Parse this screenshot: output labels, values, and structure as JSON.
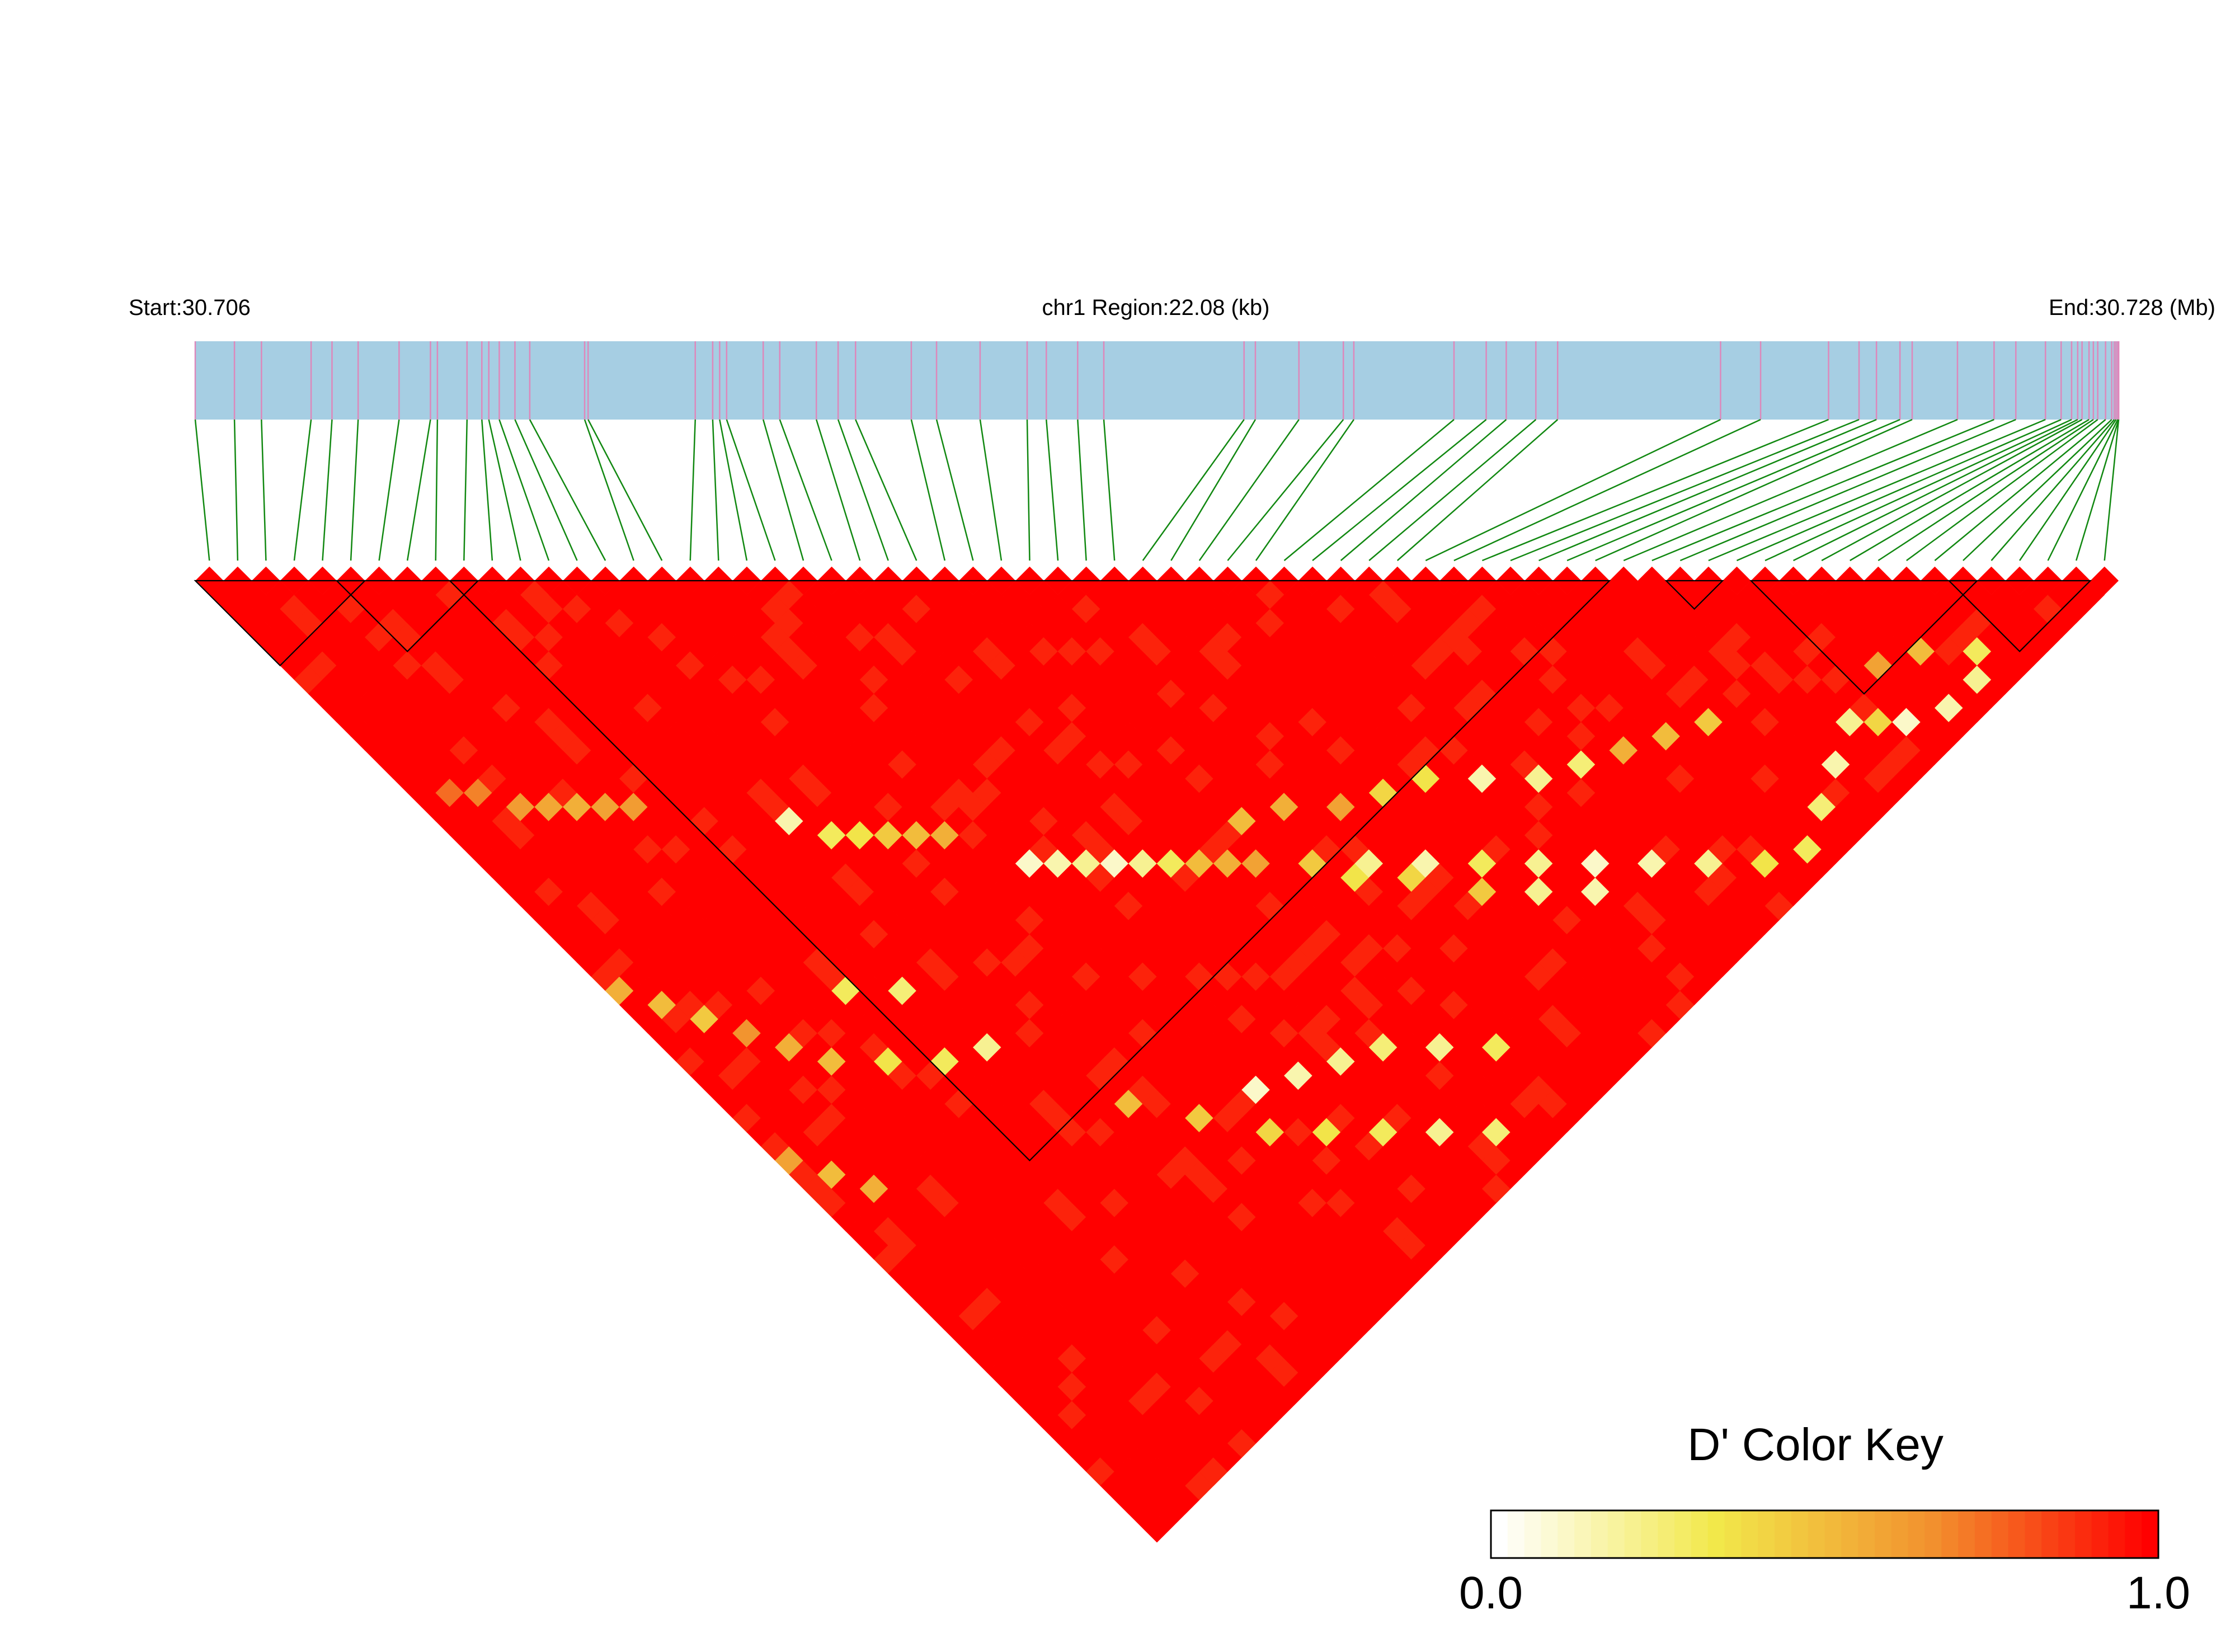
{
  "chart_data": {
    "type": "heatmap",
    "subtype": "linkage-disequilibrium-triangle",
    "header": {
      "start_label": "Start:30.706",
      "region_label": "chr1 Region:22.08 (kb)",
      "end_label": "End:30.728 (Mb)"
    },
    "region": {
      "chromosome": "chr1",
      "start_mb": 30.706,
      "end_mb": 30.728,
      "length_kb": 22.08
    },
    "snp_count": 68,
    "snp_positions_kb": [
      0.0,
      0.45,
      0.76,
      1.33,
      1.57,
      1.87,
      2.34,
      2.7,
      2.78,
      3.12,
      3.29,
      3.37,
      3.49,
      3.67,
      3.84,
      4.47,
      4.51,
      5.74,
      5.94,
      6.02,
      6.1,
      6.52,
      6.71,
      7.13,
      7.38,
      7.58,
      8.22,
      8.51,
      9.01,
      9.55,
      9.77,
      10.13,
      10.43,
      12.04,
      12.17,
      12.67,
      13.18,
      13.3,
      14.45,
      14.82,
      15.05,
      15.39,
      15.64,
      17.51,
      17.97,
      18.75,
      19.1,
      19.3,
      19.57,
      19.71,
      20.23,
      20.65,
      20.9,
      21.24,
      21.42,
      21.54,
      21.61,
      21.66,
      21.74,
      21.79,
      21.84,
      21.93,
      22.0,
      22.03,
      22.05,
      22.07,
      22.08,
      22.08
    ],
    "blocks": [
      {
        "first_snp": 1,
        "last_snp": 6
      },
      {
        "first_snp": 6,
        "last_snp": 10
      },
      {
        "first_snp": 10,
        "last_snp": 50
      },
      {
        "first_snp": 53,
        "last_snp": 54
      },
      {
        "first_snp": 56,
        "last_snp": 63
      },
      {
        "first_snp": 63,
        "last_snp": 67
      }
    ],
    "dprime_matrix": {
      "note_values": "pairwise D' (0-1); pairs listed as [i, j, D'] for i<j where D' < 1.0, all other pairs = 1.0",
      "low_pairs": [
        [
          4,
          20,
          0.62
        ],
        [
          5,
          21,
          0.58
        ],
        [
          6,
          22,
          0.55
        ],
        [
          7,
          23,
          0.6
        ],
        [
          8,
          24,
          0.62
        ],
        [
          3,
          18,
          0.7
        ],
        [
          2,
          17,
          0.75
        ],
        [
          14,
          32,
          0.3
        ],
        [
          15,
          33,
          0.35
        ],
        [
          16,
          34,
          0.45
        ],
        [
          17,
          35,
          0.5
        ],
        [
          18,
          36,
          0.55
        ],
        [
          13,
          30,
          0.15
        ],
        [
          20,
          40,
          0.1
        ],
        [
          21,
          41,
          0.15
        ],
        [
          22,
          42,
          0.2
        ],
        [
          23,
          43,
          0.1
        ],
        [
          24,
          44,
          0.2
        ],
        [
          25,
          45,
          0.3
        ],
        [
          26,
          46,
          0.5
        ],
        [
          27,
          47,
          0.55
        ],
        [
          28,
          48,
          0.6
        ],
        [
          30,
          50,
          0.45
        ],
        [
          32,
          52,
          0.2
        ],
        [
          34,
          54,
          0.15
        ],
        [
          36,
          56,
          0.3
        ],
        [
          38,
          58,
          0.2
        ],
        [
          40,
          60,
          0.1
        ],
        [
          42,
          62,
          0.15
        ],
        [
          44,
          64,
          0.2
        ],
        [
          46,
          66,
          0.35
        ],
        [
          48,
          67,
          0.3
        ],
        [
          50,
          66,
          0.25
        ],
        [
          52,
          65,
          0.15
        ],
        [
          54,
          64,
          0.2
        ],
        [
          56,
          66,
          0.1
        ],
        [
          58,
          67,
          0.15
        ],
        [
          60,
          67,
          0.2
        ],
        [
          55,
          65,
          0.4
        ],
        [
          57,
          63,
          0.6
        ],
        [
          59,
          64,
          0.5
        ],
        [
          61,
          66,
          0.3
        ],
        [
          49,
          59,
          0.45
        ],
        [
          47,
          58,
          0.5
        ],
        [
          45,
          57,
          0.55
        ],
        [
          43,
          56,
          0.25
        ],
        [
          41,
          55,
          0.2
        ],
        [
          39,
          53,
          0.15
        ],
        [
          37,
          51,
          0.35
        ],
        [
          35,
          50,
          0.4
        ],
        [
          33,
          49,
          0.6
        ],
        [
          31,
          47,
          0.55
        ],
        [
          29,
          46,
          0.5
        ],
        [
          11,
          40,
          0.25
        ],
        [
          9,
          38,
          0.3
        ],
        [
          12,
          45,
          0.2
        ],
        [
          10,
          44,
          0.3
        ],
        [
          8,
          42,
          0.35
        ],
        [
          6,
          40,
          0.5
        ],
        [
          5,
          38,
          0.55
        ],
        [
          4,
          36,
          0.65
        ],
        [
          3,
          34,
          0.45
        ],
        [
          2,
          32,
          0.5
        ],
        [
          1,
          30,
          0.55
        ],
        [
          15,
          52,
          0.5
        ],
        [
          17,
          55,
          0.45
        ],
        [
          19,
          58,
          0.4
        ],
        [
          21,
          60,
          0.35
        ],
        [
          23,
          62,
          0.3
        ],
        [
          25,
          64,
          0.2
        ],
        [
          27,
          66,
          0.25
        ],
        [
          1,
          42,
          0.6
        ],
        [
          2,
          44,
          0.5
        ],
        [
          3,
          46,
          0.55
        ],
        [
          20,
          56,
          0.1
        ],
        [
          22,
          57,
          0.15
        ],
        [
          24,
          58,
          0.2
        ],
        [
          26,
          59,
          0.25
        ],
        [
          28,
          61,
          0.2
        ],
        [
          30,
          63,
          0.3
        ],
        [
          31,
          52,
          0.35
        ],
        [
          33,
          54,
          0.4
        ],
        [
          35,
          57,
          0.45
        ],
        [
          37,
          59,
          0.2
        ],
        [
          39,
          61,
          0.15
        ]
      ],
      "mid_pairs_value": 0.92
    },
    "color_key": {
      "title": "D' Color Key",
      "min_label": "0.0",
      "max_label": "1.0",
      "range": [
        0,
        1
      ],
      "stops": [
        "#ffffff",
        "#f2e84a",
        "#f2902e",
        "#ff0000"
      ]
    },
    "colors": {
      "gene_track": "#a6cee3",
      "snp_tick": "#dd88bb",
      "connector": "#118811",
      "block_outline": "#000000"
    }
  }
}
